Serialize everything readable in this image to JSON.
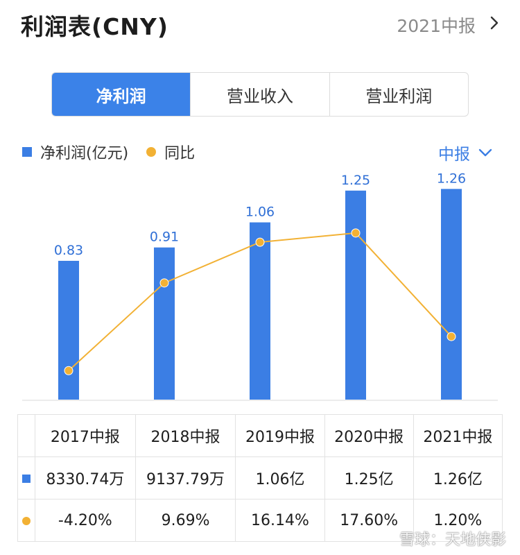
{
  "header": {
    "title": "利润表(CNY)",
    "period": "2021中报"
  },
  "tabs": [
    {
      "label": "净利润",
      "active": true
    },
    {
      "label": "营业收入",
      "active": false
    },
    {
      "label": "营业利润",
      "active": false
    }
  ],
  "legend": {
    "series1": "净利润(亿元)",
    "series2": "同比"
  },
  "period_selector": {
    "label": "中报"
  },
  "colors": {
    "accent": "#3b82e8",
    "bar": "#3b7ee4",
    "line": "#f2b134",
    "negative": "#2a9d58",
    "positive": "#d9434a"
  },
  "chart_data": {
    "type": "bar",
    "categories": [
      "2017中报",
      "2018中报",
      "2019中报",
      "2020中报",
      "2021中报"
    ],
    "series": [
      {
        "name": "净利润(亿元)",
        "type": "bar",
        "values": [
          0.83,
          0.91,
          1.06,
          1.25,
          1.26
        ],
        "labels": [
          "0.83",
          "0.91",
          "1.06",
          "1.25",
          "1.26"
        ]
      },
      {
        "name": "同比",
        "type": "line",
        "values": [
          -4.2,
          9.69,
          16.14,
          17.6,
          1.2
        ]
      }
    ]
  },
  "table": {
    "headers": [
      "2017中报",
      "2018中报",
      "2019中报",
      "2020中报",
      "2021中报"
    ],
    "net_profit": [
      "8330.74万",
      "9137.79万",
      "1.06亿",
      "1.25亿",
      "1.26亿"
    ],
    "yoy": [
      "-4.20%",
      "9.69%",
      "16.14%",
      "17.60%",
      "1.20%"
    ]
  },
  "watermark": "雪球：天地侠影"
}
